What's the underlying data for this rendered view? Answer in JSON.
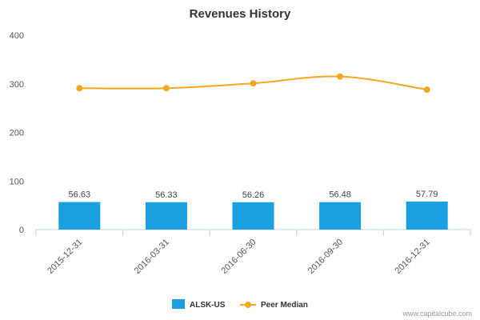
{
  "chart_data": {
    "type": "bar",
    "title": "Revenues History",
    "categories": [
      "2015-12-31",
      "2016-03-31",
      "2016-06-30",
      "2016-09-30",
      "2016-12-31"
    ],
    "series": [
      {
        "name": "ALSK-US",
        "type": "bar",
        "values": [
          56.63,
          56.33,
          56.26,
          56.48,
          57.79
        ],
        "labels": [
          "56.63",
          "56.33",
          "56.26",
          "56.48",
          "57.79"
        ],
        "color": "#1a9fe0"
      },
      {
        "name": "Peer Median",
        "type": "line",
        "values": [
          291,
          291,
          301,
          315,
          288
        ],
        "color": "#f5a623"
      }
    ],
    "yticks": [
      "0",
      "100",
      "200",
      "300",
      "400"
    ],
    "ylim": [
      0,
      400
    ],
    "grid": false,
    "legend_position": "bottom-center"
  },
  "credit": "www.capitalcube.com"
}
